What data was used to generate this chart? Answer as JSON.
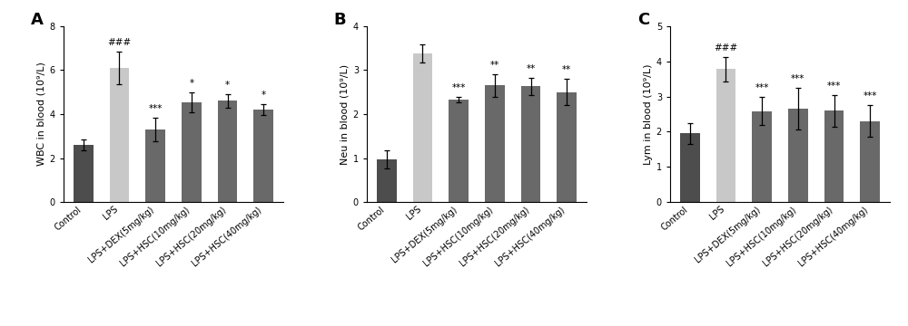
{
  "panels": [
    {
      "label": "A",
      "ylabel": "WBC in blood (10⁹/L)",
      "ylim": [
        0,
        8
      ],
      "yticks": [
        0,
        2,
        4,
        6,
        8
      ],
      "categories": [
        "Control",
        "LPS",
        "LPS+DEX(5mg/kg)",
        "LPS+HSC(10mg/kg)",
        "LPS+HSC(20mg/kg)",
        "LPS+HSC(40mg/kg)"
      ],
      "values": [
        2.6,
        6.1,
        3.3,
        4.55,
        4.6,
        4.2
      ],
      "errors": [
        0.25,
        0.75,
        0.55,
        0.45,
        0.3,
        0.25
      ],
      "colors": [
        "#4d4d4d",
        "#c8c8c8",
        "#696969",
        "#696969",
        "#696969",
        "#696969"
      ],
      "sig_above": [
        "",
        "###",
        "***",
        "*",
        "*",
        "*"
      ]
    },
    {
      "label": "B",
      "ylabel": "Neu in blood (10⁹/L)",
      "ylim": [
        0,
        4
      ],
      "yticks": [
        0,
        1,
        2,
        3,
        4
      ],
      "categories": [
        "Control",
        "LPS",
        "LPS+DEX(5mg/kg)",
        "LPS+HSC(10mg/kg)",
        "LPS+HSC(20mg/kg)",
        "LPS+HSC(40mg/kg)"
      ],
      "values": [
        0.97,
        3.38,
        2.33,
        2.65,
        2.63,
        2.5
      ],
      "errors": [
        0.2,
        0.2,
        0.07,
        0.25,
        0.2,
        0.3
      ],
      "colors": [
        "#4d4d4d",
        "#c8c8c8",
        "#696969",
        "#696969",
        "#696969",
        "#696969"
      ],
      "sig_above": [
        "",
        "",
        "***",
        "**",
        "**",
        "**"
      ]
    },
    {
      "label": "C",
      "ylabel": "Lym in blood (10⁹/L)",
      "ylim": [
        0,
        5
      ],
      "yticks": [
        0,
        1,
        2,
        3,
        4,
        5
      ],
      "categories": [
        "Control",
        "LPS",
        "LPS+DEX(5mg/kg)",
        "LPS+HSC(10mg/kg)",
        "LPS+HSC(20mg/kg)",
        "LPS+HSC(40mg/kg)"
      ],
      "values": [
        1.95,
        3.78,
        2.58,
        2.65,
        2.6,
        2.3
      ],
      "errors": [
        0.3,
        0.35,
        0.4,
        0.6,
        0.45,
        0.45
      ],
      "colors": [
        "#4d4d4d",
        "#c8c8c8",
        "#696969",
        "#696969",
        "#696969",
        "#696969"
      ],
      "sig_above": [
        "",
        "###",
        "***",
        "***",
        "***",
        "***"
      ]
    }
  ],
  "bar_width": 0.55,
  "tick_fontsize": 7.0,
  "ylabel_fontsize": 8.0,
  "sig_fontsize": 7.5,
  "panel_label_fontsize": 13,
  "fig_width": 10.0,
  "fig_height": 3.6
}
